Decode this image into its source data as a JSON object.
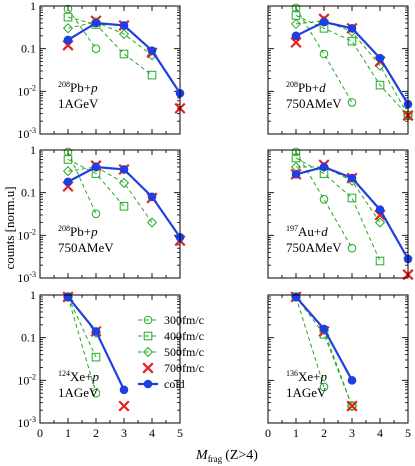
{
  "figure": {
    "ylabel": "counts [norm.u]",
    "xlabel_main": "M",
    "xlabel_sub": "frag",
    "xlabel_suffix": "(Z>4)"
  },
  "legend": {
    "placement": "lower-left panel, right side",
    "entries": [
      {
        "series": "300",
        "label": "300fm/c",
        "marker": "circle-open",
        "color": "#22aa22",
        "line": "dashed"
      },
      {
        "series": "400",
        "label": "400fm/c",
        "marker": "square-open",
        "color": "#22aa22",
        "line": "dashed"
      },
      {
        "series": "500",
        "label": "500fm/c",
        "marker": "diamond-open",
        "color": "#22aa22",
        "line": "dashed"
      },
      {
        "series": "700",
        "label": "700fm/c",
        "marker": "cross",
        "color": "#e82020",
        "line": "none"
      },
      {
        "series": "cold",
        "label": "cold",
        "marker": "circle-filled",
        "color": "#1f3fe0",
        "line": "solid"
      }
    ]
  },
  "chart_data": [
    {
      "type": "line",
      "panel": "top-left",
      "yscale": "log",
      "xlim": [
        0,
        5
      ],
      "ylim": [
        0.001,
        1
      ],
      "x_ticks": [
        "",
        "",
        "",
        "",
        "",
        ""
      ],
      "y_ticks": [
        "1",
        "0.1",
        "10-2",
        "10-3"
      ],
      "label_pre": "208",
      "label_main": "Pb+",
      "label_proj": "p",
      "label_energy": "1AGeV",
      "series": [
        {
          "name": "300fm/c",
          "x": [
            1,
            2
          ],
          "values": [
            0.85,
            0.1
          ]
        },
        {
          "name": "400fm/c",
          "x": [
            1,
            2,
            3,
            4
          ],
          "values": [
            0.55,
            0.37,
            0.075,
            0.024
          ]
        },
        {
          "name": "500fm/c",
          "x": [
            1,
            2,
            3,
            4
          ],
          "values": [
            0.3,
            0.42,
            0.22,
            0.07
          ]
        },
        {
          "name": "700fm/c",
          "x": [
            1,
            2,
            3,
            4,
            5
          ],
          "values": [
            0.12,
            0.45,
            0.35,
            0.08,
            0.004
          ]
        },
        {
          "name": "cold",
          "x": [
            1,
            2,
            3,
            4,
            5
          ],
          "values": [
            0.16,
            0.4,
            0.35,
            0.09,
            0.009
          ]
        }
      ]
    },
    {
      "type": "line",
      "panel": "top-right",
      "yscale": "log",
      "xlim": [
        0,
        5
      ],
      "ylim": [
        0.001,
        1
      ],
      "x_ticks": [
        "",
        "",
        "",
        "",
        "",
        ""
      ],
      "y_ticks": [
        "",
        "",
        "",
        ""
      ],
      "label_pre": "208",
      "label_main": "Pb+",
      "label_proj": "d",
      "label_energy": "750AMeV",
      "series": [
        {
          "name": "300fm/c",
          "x": [
            1,
            2,
            3
          ],
          "values": [
            0.9,
            0.075,
            0.0055
          ]
        },
        {
          "name": "400fm/c",
          "x": [
            1,
            2,
            3,
            4,
            5
          ],
          "values": [
            0.6,
            0.3,
            0.15,
            0.014,
            0.0027
          ]
        },
        {
          "name": "500fm/c",
          "x": [
            1,
            2,
            3,
            4,
            5
          ],
          "values": [
            0.38,
            0.45,
            0.25,
            0.04,
            0.0028
          ]
        },
        {
          "name": "700fm/c",
          "x": [
            1,
            2,
            3,
            4,
            5
          ],
          "values": [
            0.14,
            0.5,
            0.3,
            0.05,
            0.0027
          ]
        },
        {
          "name": "cold",
          "x": [
            1,
            2,
            3,
            4,
            5
          ],
          "values": [
            0.2,
            0.42,
            0.3,
            0.06,
            0.005
          ]
        }
      ]
    },
    {
      "type": "line",
      "panel": "middle-left",
      "yscale": "log",
      "xlim": [
        0,
        5
      ],
      "ylim": [
        0.001,
        1
      ],
      "x_ticks": [
        "",
        "",
        "",
        "",
        "",
        ""
      ],
      "y_ticks": [
        "1",
        "0.1",
        "10-2",
        "10-3"
      ],
      "label_pre": "208",
      "label_main": "Pb+",
      "label_proj": "p",
      "label_energy": "750AMeV",
      "series": [
        {
          "name": "300fm/c",
          "x": [
            1,
            2
          ],
          "values": [
            0.9,
            0.032
          ]
        },
        {
          "name": "400fm/c",
          "x": [
            1,
            2,
            3
          ],
          "values": [
            0.6,
            0.28,
            0.048
          ]
        },
        {
          "name": "500fm/c",
          "x": [
            1,
            2,
            3,
            4
          ],
          "values": [
            0.32,
            0.4,
            0.17,
            0.02
          ]
        },
        {
          "name": "700fm/c",
          "x": [
            1,
            2,
            3,
            4,
            5
          ],
          "values": [
            0.14,
            0.43,
            0.35,
            0.075,
            0.0075
          ]
        },
        {
          "name": "cold",
          "x": [
            1,
            2,
            3,
            4,
            5
          ],
          "values": [
            0.18,
            0.4,
            0.35,
            0.08,
            0.009
          ]
        }
      ]
    },
    {
      "type": "line",
      "panel": "middle-right",
      "yscale": "log",
      "xlim": [
        0,
        5
      ],
      "ylim": [
        0.001,
        1
      ],
      "x_ticks": [
        "",
        "",
        "",
        "",
        "",
        ""
      ],
      "y_ticks": [
        "",
        "",
        "",
        ""
      ],
      "label_pre": "197",
      "label_main": "Au+",
      "label_proj": "d",
      "label_energy": "750AMeV",
      "series": [
        {
          "name": "300fm/c",
          "x": [
            1,
            2,
            3
          ],
          "values": [
            0.9,
            0.07,
            0.005
          ]
        },
        {
          "name": "400fm/c",
          "x": [
            1,
            2,
            3,
            4
          ],
          "values": [
            0.65,
            0.28,
            0.075,
            0.0025
          ]
        },
        {
          "name": "500fm/c",
          "x": [
            1,
            2,
            3,
            4
          ],
          "values": [
            0.4,
            0.4,
            0.19,
            0.02
          ]
        },
        {
          "name": "700fm/c",
          "x": [
            1,
            2,
            3,
            4,
            5
          ],
          "values": [
            0.27,
            0.45,
            0.22,
            0.03,
            0.0012
          ]
        },
        {
          "name": "cold",
          "x": [
            1,
            2,
            3,
            4,
            5
          ],
          "values": [
            0.27,
            0.4,
            0.22,
            0.04,
            0.0028
          ]
        }
      ]
    },
    {
      "type": "line",
      "panel": "bottom-left",
      "yscale": "log",
      "xlim": [
        0,
        5
      ],
      "ylim": [
        0.001,
        1
      ],
      "x_ticks": [
        "0",
        "1",
        "2",
        "3",
        "4",
        "5"
      ],
      "y_ticks": [
        "1",
        "0.1",
        "10-2",
        "10-3"
      ],
      "label_pre": "124",
      "label_main": "Xe+",
      "label_proj": "p",
      "label_energy": "1AGeV",
      "series": [
        {
          "name": "300fm/c",
          "x": [
            1,
            2
          ],
          "values": [
            0.9,
            0.005
          ]
        },
        {
          "name": "400fm/c",
          "x": [
            1,
            2
          ],
          "values": [
            0.9,
            0.035
          ]
        },
        {
          "name": "500fm/c",
          "x": [
            1,
            2
          ],
          "values": [
            0.9,
            0.13
          ]
        },
        {
          "name": "700fm/c",
          "x": [
            1,
            2,
            3
          ],
          "values": [
            0.9,
            0.14,
            0.0025
          ]
        },
        {
          "name": "cold",
          "x": [
            1,
            2,
            3
          ],
          "values": [
            0.9,
            0.14,
            0.006
          ]
        }
      ]
    },
    {
      "type": "line",
      "panel": "bottom-right",
      "yscale": "log",
      "xlim": [
        0,
        5
      ],
      "ylim": [
        0.001,
        1
      ],
      "x_ticks": [
        "0",
        "1",
        "2",
        "3",
        "4",
        "5"
      ],
      "y_ticks": [
        "",
        "",
        "",
        ""
      ],
      "label_pre": "136",
      "label_main": "Xe+",
      "label_proj": "p",
      "label_energy": "1AGeV",
      "series": [
        {
          "name": "300fm/c",
          "x": [
            1,
            2
          ],
          "values": [
            0.9,
            0.007
          ]
        },
        {
          "name": "400fm/c",
          "x": [
            1,
            2,
            3
          ],
          "values": [
            0.9,
            0.12,
            0.0025
          ]
        },
        {
          "name": "500fm/c",
          "x": [
            1,
            2,
            3
          ],
          "values": [
            0.9,
            0.15,
            0.0025
          ]
        },
        {
          "name": "700fm/c",
          "x": [
            1,
            2,
            3
          ],
          "values": [
            0.9,
            0.14,
            0.0025
          ]
        },
        {
          "name": "cold",
          "x": [
            1,
            2,
            3
          ],
          "values": [
            0.9,
            0.16,
            0.01
          ]
        }
      ]
    }
  ]
}
